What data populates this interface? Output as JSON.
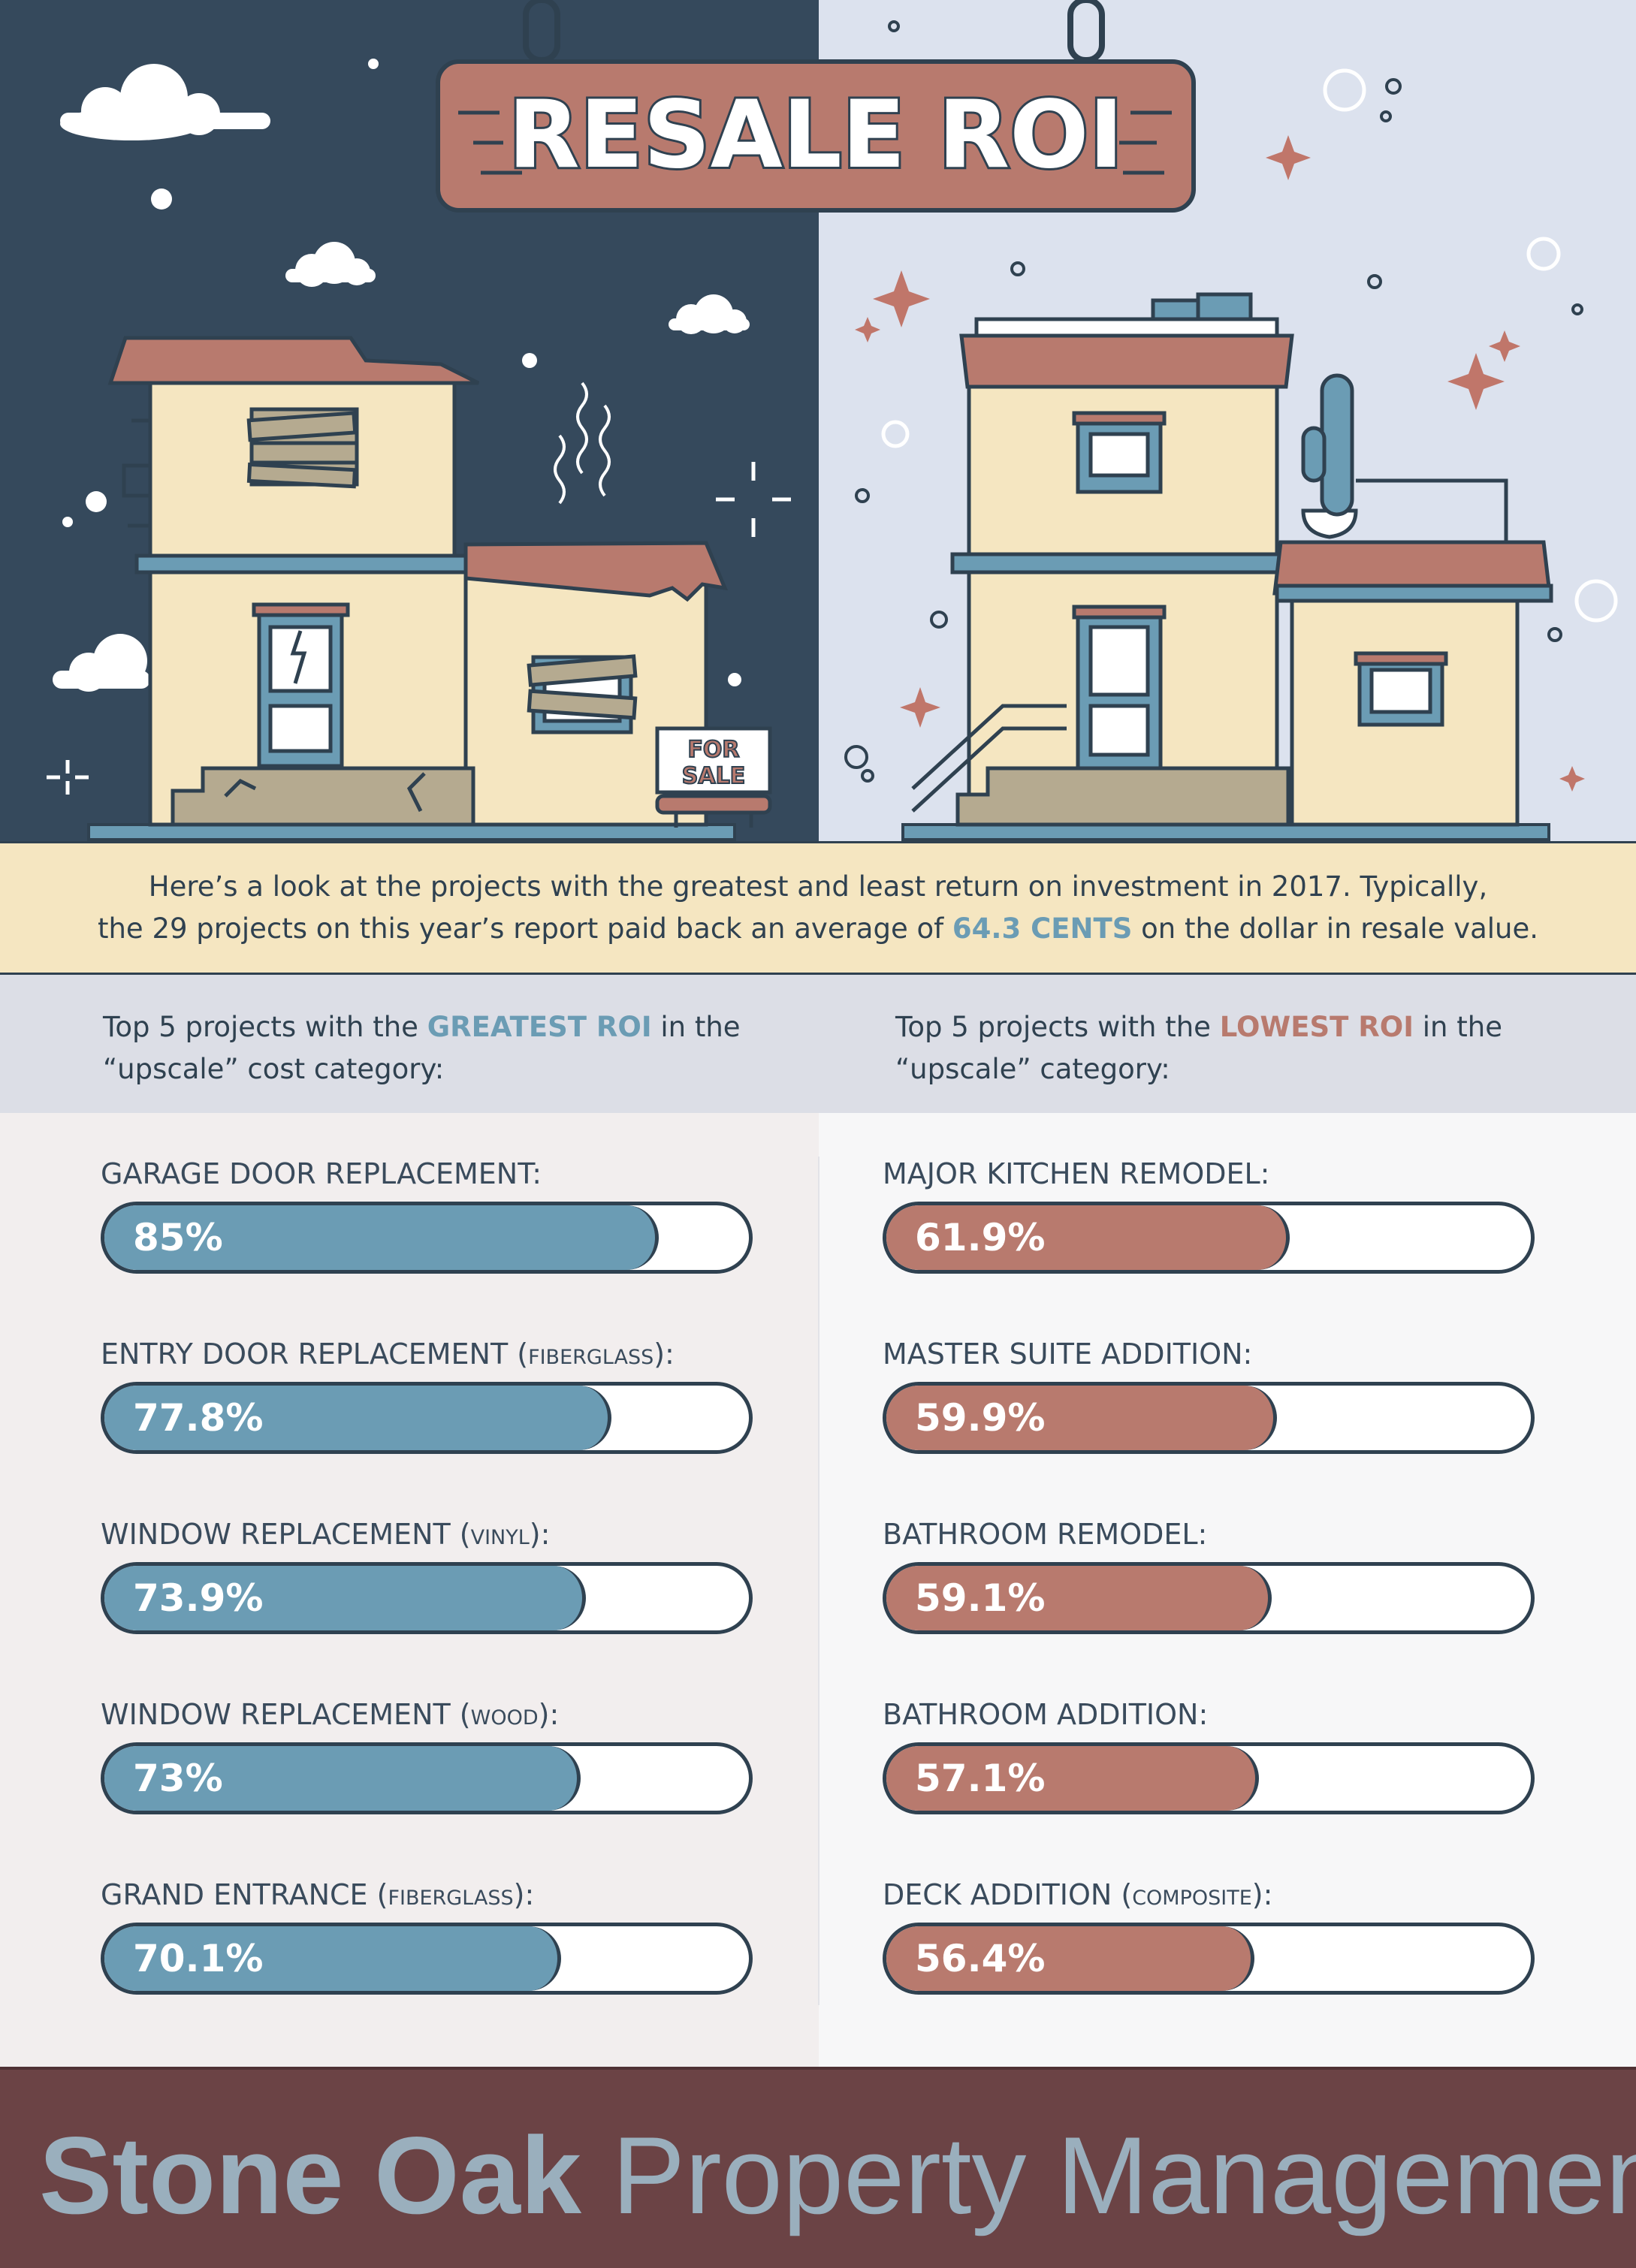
{
  "header": {
    "title": "RESALE ROI",
    "sign_text": "FOR SALE",
    "sign_line1": "FOR",
    "sign_line2": "SALE"
  },
  "intro": {
    "text_before": "Here’s a look at the projects with the greatest and least return on investment in 2017. Typically,",
    "text_line2_before": "the 29 projects on this year’s report paid back an average of ",
    "highlight": "64.3 CENTS",
    "text_after": " on the dollar in resale value."
  },
  "left_header": {
    "before": "Top 5 projects with the ",
    "highlight": "GREATEST ROI",
    "after": " in the",
    "line2": "“upscale” cost category:"
  },
  "right_header": {
    "before": "Top 5 projects with the ",
    "highlight": "LOWEST ROI",
    "after": " in the",
    "line2": "“upscale” category:"
  },
  "colors": {
    "navy": "#35495c",
    "outline": "#2f4150",
    "blue": "#6b9cb4",
    "red": "#b87a6e",
    "cream": "#f5e6c1",
    "footer": "#6b4345"
  },
  "chart_data": [
    {
      "type": "bar",
      "categories": [
        "GARAGE DOOR REPLACEMENT",
        "ENTRY DOOR REPLACEMENT",
        "WINDOW REPLACEMENT",
        "WINDOW REPLACEMENT",
        "GRAND ENTRANCE"
      ],
      "qualifiers": [
        "",
        "FIBERGLASS",
        "VINYL",
        "WOOD",
        "FIBERGLASS"
      ],
      "values": [
        85,
        77.8,
        73.9,
        73,
        70.1
      ],
      "labels": [
        "85%",
        "77.8%",
        "73.9%",
        "73%",
        "70.1%"
      ],
      "unit": "%",
      "ylim": [
        0,
        100
      ],
      "color": "#6b9cb4"
    },
    {
      "type": "bar",
      "categories": [
        "MAJOR KITCHEN REMODEL",
        "MASTER SUITE ADDITION",
        "BATHROOM REMODEL",
        "BATHROOM ADDITION",
        "DECK ADDITION"
      ],
      "qualifiers": [
        "",
        "",
        "",
        "",
        "COMPOSITE"
      ],
      "values": [
        61.9,
        59.9,
        59.1,
        57.1,
        56.4
      ],
      "labels": [
        "61.9%",
        "59.9%",
        "59.1%",
        "57.1%",
        "56.4%"
      ],
      "unit": "%",
      "ylim": [
        0,
        100
      ],
      "color": "#b87a6e"
    }
  ],
  "footer": {
    "brand_bold": "Stone Oak",
    "brand_light": "Property Management"
  }
}
